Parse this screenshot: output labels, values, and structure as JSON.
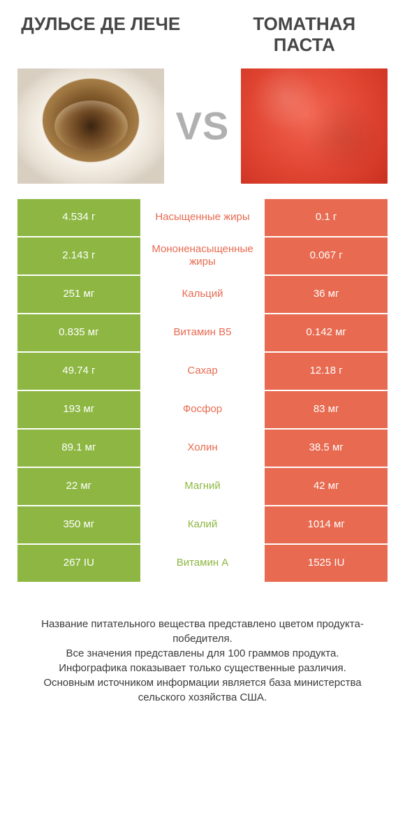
{
  "colors": {
    "green": "#8db742",
    "orange": "#e86a50",
    "title_text": "#464646",
    "vs_text": "#b0b0b0",
    "footer_text": "#3a3a3a",
    "background": "#ffffff"
  },
  "left_title": "ДУЛЬСЕ ДЕ ЛЕЧЕ",
  "right_title": "ТОМАТНАЯ ПАСТА",
  "vs_label": "VS",
  "rows": [
    {
      "left": "4.534 г",
      "label": "Насыщенные жиры",
      "right": "0.1 г",
      "winner": "left"
    },
    {
      "left": "2.143 г",
      "label": "Мононенасыщенные жиры",
      "right": "0.067 г",
      "winner": "left"
    },
    {
      "left": "251 мг",
      "label": "Кальций",
      "right": "36 мг",
      "winner": "left"
    },
    {
      "left": "0.835 мг",
      "label": "Витамин B5",
      "right": "0.142 мг",
      "winner": "left"
    },
    {
      "left": "49.74 г",
      "label": "Сахар",
      "right": "12.18 г",
      "winner": "left"
    },
    {
      "left": "193 мг",
      "label": "Фосфор",
      "right": "83 мг",
      "winner": "left"
    },
    {
      "left": "89.1 мг",
      "label": "Холин",
      "right": "38.5 мг",
      "winner": "left"
    },
    {
      "left": "22 мг",
      "label": "Магний",
      "right": "42 мг",
      "winner": "right"
    },
    {
      "left": "350 мг",
      "label": "Калий",
      "right": "1014 мг",
      "winner": "right"
    },
    {
      "left": "267 IU",
      "label": "Витамин A",
      "right": "1525 IU",
      "winner": "right"
    }
  ],
  "footer_lines": [
    "Название питательного вещества представлено цветом продукта-победителя.",
    "Все значения представлены для 100 граммов продукта.",
    "Инфографика показывает только существенные различия.",
    "Основным источником информации является база министерства сельского хозяйства США."
  ]
}
